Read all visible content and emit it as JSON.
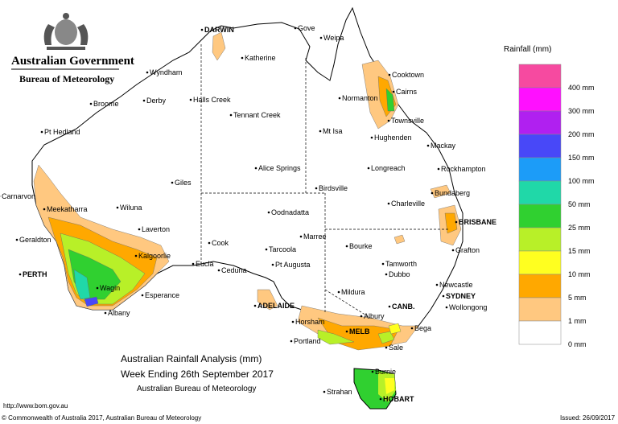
{
  "header": {
    "lines": [
      "Australian Government",
      "Bureau of Meteorology"
    ]
  },
  "title": {
    "lines": [
      "Australian Rainfall Analysis (mm)",
      "Week Ending 26th September 2017",
      "Australian Bureau of Meteorology"
    ]
  },
  "legend": {
    "title": "Rainfall (mm)",
    "labels": [
      "400 mm",
      "300 mm",
      "200 mm",
      "150 mm",
      "100 mm",
      "50 mm",
      "25 mm",
      "15 mm",
      "10 mm",
      "5 mm",
      "1 mm",
      "0 mm"
    ],
    "colors": [
      "#f64aa0",
      "#ff10ff",
      "#b020f0",
      "#4848f8",
      "#1c9cf8",
      "#20d8a8",
      "#30d030",
      "#b8f028",
      "#ffff20",
      "#ffa800",
      "#ffc880",
      "#ffffff"
    ]
  },
  "cities": [
    "DARWIN",
    "Gove",
    "Weipa",
    "Katherine",
    "Wyndham",
    "Cooktown",
    "Cairns",
    "Normanton",
    "Broome",
    "Derby",
    "Halls Creek",
    "Tennant Creek",
    "Townsville",
    "Pt Hedland",
    "Mt Isa",
    "Hughenden",
    "Mackay",
    "Alice Springs",
    "Longreach",
    "Rockhampton",
    "Giles",
    "Birdsville",
    "Carnarvon",
    "Bundaberg",
    "Charleville",
    "Meekatharra",
    "Wiluna",
    "Oodnadatta",
    "BRISBANE",
    "Laverton",
    "Geraldton",
    "Marree",
    "Bourke",
    "Grafton",
    "Cook",
    "Tarcoola",
    "Kalgoorlie",
    "Tamworth",
    "Eucla",
    "Ceduna",
    "Pt Augusta",
    "Dubbo",
    "PERTH",
    "Newcastle",
    "Wagin",
    "Mildura",
    "SYDNEY",
    "Wollongong",
    "Esperance",
    "ADELAIDE",
    "CANB.",
    "Albany",
    "Albury",
    "Horsham",
    "Bega",
    "MELB",
    "Portland",
    "Sale",
    "Burnie",
    "Strahan",
    "HOBART"
  ],
  "footer": {
    "url": "http://www.bom.gov.au",
    "copyright": "© Commonwealth of Australia 2017, Australian Bureau of Meteorology",
    "issued": "Issued: 26/09/2017"
  }
}
